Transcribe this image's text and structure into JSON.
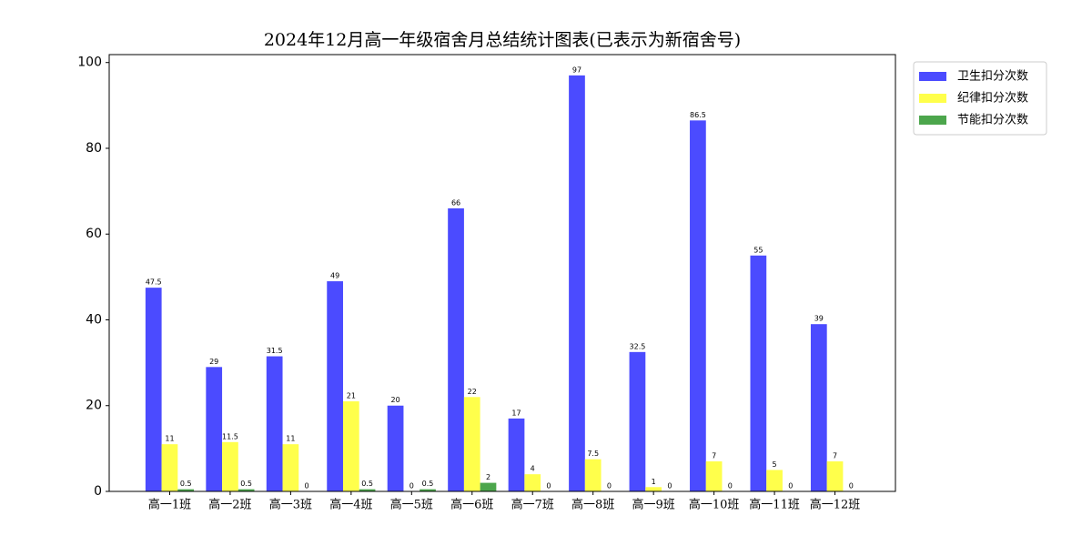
{
  "chart_data": {
    "type": "bar",
    "title": "2024年12月高一年级宿舍月总结统计图表(已表示为新宿舍号)",
    "categories": [
      "高一1班",
      "高一2班",
      "高一3班",
      "高一4班",
      "高一5班",
      "高一6班",
      "高一7班",
      "高一8班",
      "高一9班",
      "高一10班",
      "高一11班",
      "高一12班"
    ],
    "series": [
      {
        "name": "卫生扣分次数",
        "color": "#4b4bff",
        "values": [
          47.5,
          29,
          31.5,
          49,
          20,
          66,
          17,
          97,
          32.5,
          86.5,
          55,
          39
        ]
      },
      {
        "name": "纪律扣分次数",
        "color": "#ffff4b",
        "values": [
          11,
          11.5,
          11,
          21,
          0,
          22,
          4,
          7.5,
          1,
          7,
          5,
          7
        ]
      },
      {
        "name": "节能扣分次数",
        "color": "#4ca64c",
        "values": [
          0.5,
          0.5,
          0,
          0.5,
          0.5,
          2,
          0,
          0,
          0,
          0,
          0,
          0
        ]
      }
    ],
    "ylim": [
      0,
      101.85
    ],
    "yticks": [
      0,
      20,
      40,
      60,
      80,
      100
    ],
    "legend": "outside-upper-right"
  }
}
